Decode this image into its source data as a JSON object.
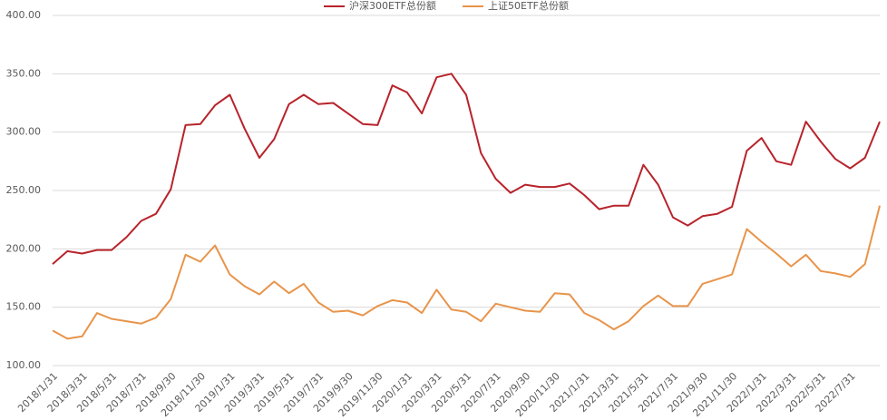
{
  "chart_data": {
    "type": "line",
    "categories": [
      "2018/1/31",
      null,
      "2018/3/31",
      null,
      "2018/5/31",
      null,
      "2018/7/31",
      null,
      "2018/9/30",
      null,
      "2018/11/30",
      null,
      "2019/1/31",
      null,
      "2019/3/31",
      null,
      "2019/5/31",
      null,
      "2019/7/31",
      null,
      "2019/9/30",
      null,
      "2019/11/30",
      null,
      "2020/1/31",
      null,
      "2020/3/31",
      null,
      "2020/5/31",
      null,
      "2020/7/31",
      null,
      "2020/9/30",
      null,
      "2020/11/30",
      null,
      "2021/1/31",
      null,
      "2021/3/31",
      null,
      "2021/5/31",
      null,
      "2021/7/31",
      null,
      "2021/9/30",
      null,
      "2021/11/30",
      null,
      "2022/1/31",
      null,
      "2022/3/31",
      null,
      "2022/5/31",
      null,
      "2022/7/31",
      null,
      null
    ],
    "series": [
      {
        "name": "沪深300ETF总份额",
        "color": "#b8232b",
        "values": [
          187,
          198,
          196,
          199,
          199,
          210,
          224,
          230,
          251,
          306,
          307,
          323,
          332,
          303,
          278,
          294,
          324,
          332,
          324,
          325,
          316,
          307,
          306,
          340,
          334,
          316,
          347,
          350,
          332,
          282,
          260,
          248,
          255,
          253,
          253,
          256,
          246,
          234,
          237,
          237,
          272,
          255,
          227,
          220,
          228,
          230,
          236,
          284,
          295,
          275,
          272,
          309,
          292,
          277,
          269,
          278,
          309
        ]
      },
      {
        "name": "上证50ETF总份额",
        "color": "#e8944a",
        "values": [
          130,
          123,
          125,
          145,
          140,
          138,
          136,
          141,
          157,
          195,
          189,
          203,
          178,
          168,
          161,
          172,
          162,
          170,
          154,
          146,
          147,
          143,
          151,
          156,
          154,
          145,
          165,
          148,
          146,
          138,
          153,
          150,
          147,
          146,
          162,
          161,
          145,
          139,
          131,
          138,
          151,
          160,
          151,
          151,
          170,
          174,
          178,
          217,
          206,
          196,
          185,
          195,
          181,
          179,
          176,
          187,
          237
        ]
      }
    ],
    "ylim": [
      100,
      400
    ],
    "yticks": [
      {
        "value": 100,
        "label": "100.00"
      },
      {
        "value": 150,
        "label": "150.00"
      },
      {
        "value": 200,
        "label": "200.00"
      },
      {
        "value": 250,
        "label": "250.00"
      },
      {
        "value": 300,
        "label": "300.00"
      },
      {
        "value": 350,
        "label": "350.00"
      },
      {
        "value": 400,
        "label": "400.00"
      }
    ],
    "grid": true,
    "legend": "top"
  }
}
